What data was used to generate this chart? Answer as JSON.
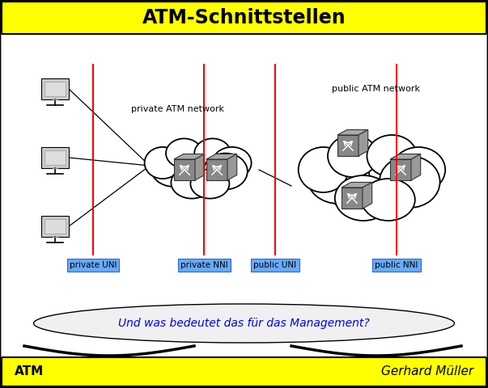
{
  "title": "ATM-Schnittstellen",
  "footer_left": "ATM",
  "footer_right": "Gerhard Müller",
  "title_bg": "#FFFF00",
  "footer_bg": "#FFFF00",
  "main_bg": "#FFFFFF",
  "border_color": "#000000",
  "private_network_label": "private ATM network",
  "public_network_label": "public ATM network",
  "labels": [
    "private UNI",
    "private NNI",
    "public UNI",
    "public NNI"
  ],
  "label_bg": "#66AAFF",
  "question_text": "Und was bedeutet das für das Management?",
  "question_color": "#0000EE",
  "red_line_color": "#FF0000",
  "title_fontsize": 17,
  "footer_fontsize": 11,
  "label_fontsize": 7.5,
  "network_label_fontsize": 8,
  "question_fontsize": 10
}
